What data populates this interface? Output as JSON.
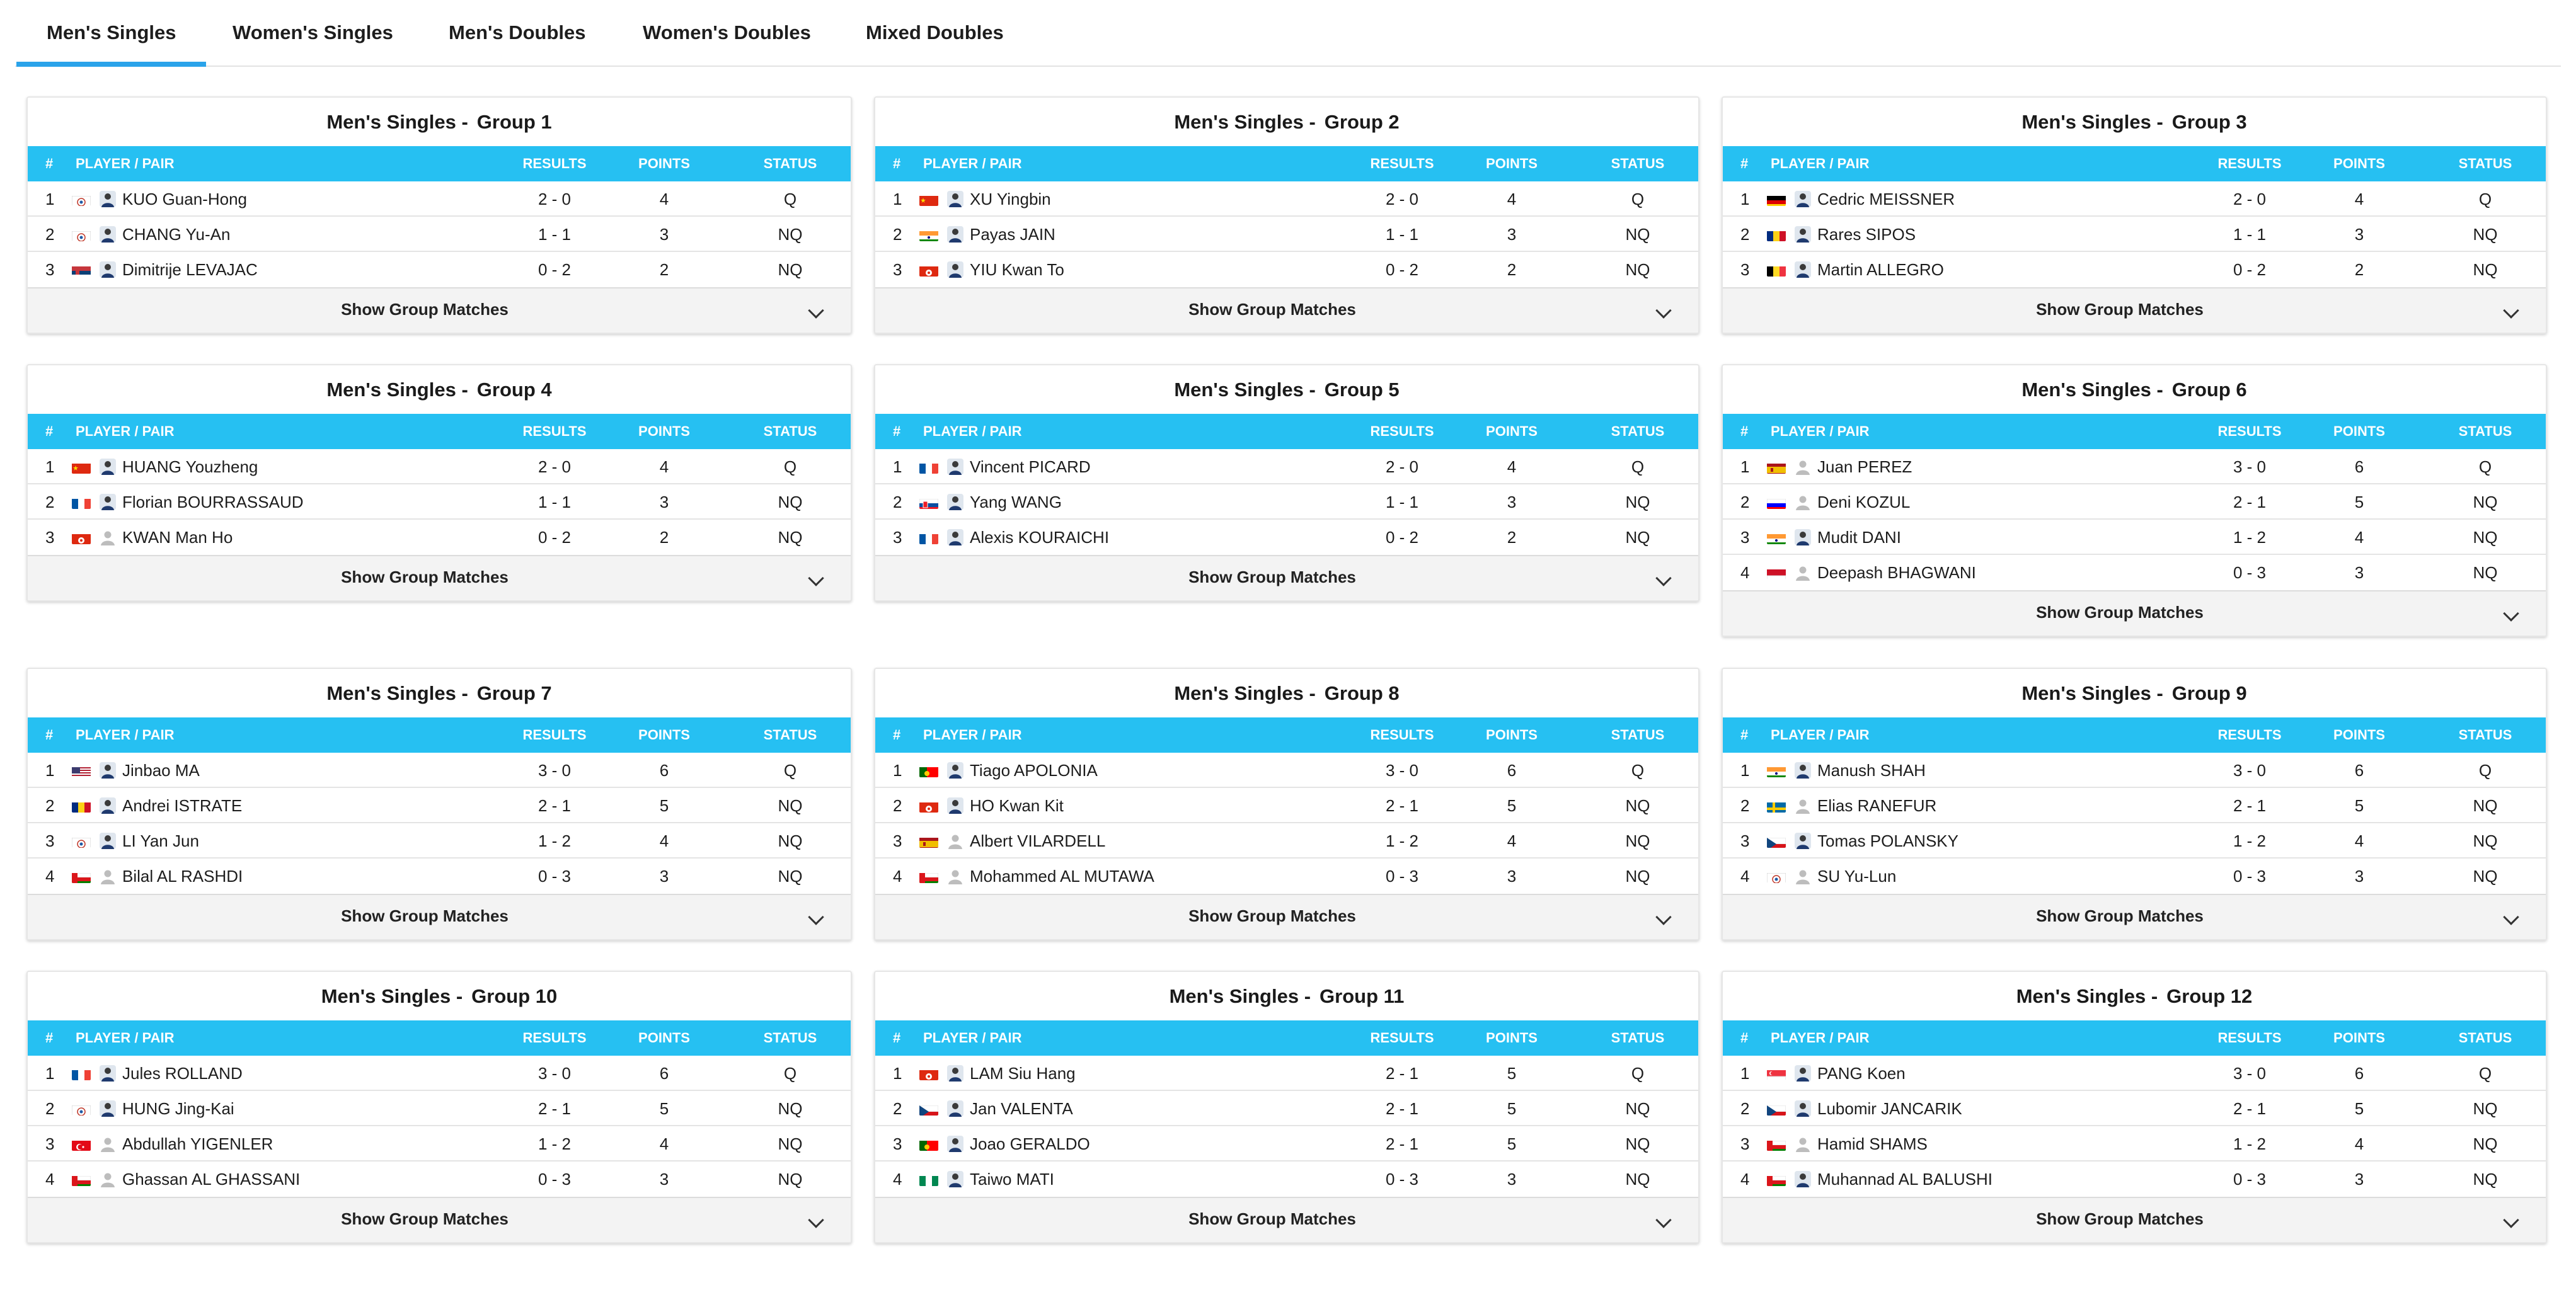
{
  "tabs": [
    {
      "label": "Men's Singles",
      "active": true
    },
    {
      "label": "Women's Singles"
    },
    {
      "label": "Men's Doubles"
    },
    {
      "label": "Women's Doubles"
    },
    {
      "label": "Mixed Doubles"
    }
  ],
  "table_headers": {
    "rank": "#",
    "player": "PLAYER / PAIR",
    "results": "RESULTS",
    "points": "POINTS",
    "status": "STATUS"
  },
  "show_matches_label": "Show Group Matches",
  "groups": [
    {
      "prefix": "Men's Singles -",
      "group": "Group 1",
      "rows": [
        {
          "rank": "1",
          "flag": "TPE",
          "photo": true,
          "name": "KUO Guan-Hong",
          "results": "2 - 0",
          "points": "4",
          "status": "Q"
        },
        {
          "rank": "2",
          "flag": "TPE",
          "photo": true,
          "name": "CHANG Yu-An",
          "results": "1 - 1",
          "points": "3",
          "status": "NQ"
        },
        {
          "rank": "3",
          "flag": "SRB",
          "photo": true,
          "name": "Dimitrije LEVAJAC",
          "results": "0 - 2",
          "points": "2",
          "status": "NQ"
        }
      ]
    },
    {
      "prefix": "Men's Singles -",
      "group": "Group 2",
      "rows": [
        {
          "rank": "1",
          "flag": "CHN",
          "photo": true,
          "name": "XU Yingbin",
          "results": "2 - 0",
          "points": "4",
          "status": "Q"
        },
        {
          "rank": "2",
          "flag": "IND",
          "photo": true,
          "name": "Payas JAIN",
          "results": "1 - 1",
          "points": "3",
          "status": "NQ"
        },
        {
          "rank": "3",
          "flag": "HKG",
          "photo": true,
          "name": "YIU Kwan To",
          "results": "0 - 2",
          "points": "2",
          "status": "NQ"
        }
      ]
    },
    {
      "prefix": "Men's Singles -",
      "group": "Group 3",
      "rows": [
        {
          "rank": "1",
          "flag": "GER",
          "photo": true,
          "name": "Cedric MEISSNER",
          "results": "2 - 0",
          "points": "4",
          "status": "Q"
        },
        {
          "rank": "2",
          "flag": "ROU",
          "photo": true,
          "name": "Rares SIPOS",
          "results": "1 - 1",
          "points": "3",
          "status": "NQ"
        },
        {
          "rank": "3",
          "flag": "BEL",
          "photo": true,
          "name": "Martin ALLEGRO",
          "results": "0 - 2",
          "points": "2",
          "status": "NQ"
        }
      ]
    },
    {
      "prefix": "Men's Singles -",
      "group": "Group 4",
      "rows": [
        {
          "rank": "1",
          "flag": "CHN",
          "photo": true,
          "name": "HUANG Youzheng",
          "results": "2 - 0",
          "points": "4",
          "status": "Q"
        },
        {
          "rank": "2",
          "flag": "FRA",
          "photo": true,
          "name": "Florian BOURRASSAUD",
          "results": "1 - 1",
          "points": "3",
          "status": "NQ"
        },
        {
          "rank": "3",
          "flag": "HKG",
          "photo": false,
          "name": "KWAN Man Ho",
          "results": "0 - 2",
          "points": "2",
          "status": "NQ"
        }
      ]
    },
    {
      "prefix": "Men's Singles -",
      "group": "Group 5",
      "rows": [
        {
          "rank": "1",
          "flag": "FRA",
          "photo": true,
          "name": "Vincent PICARD",
          "results": "2 - 0",
          "points": "4",
          "status": "Q"
        },
        {
          "rank": "2",
          "flag": "SVK",
          "photo": true,
          "name": "Yang WANG",
          "results": "1 - 1",
          "points": "3",
          "status": "NQ"
        },
        {
          "rank": "3",
          "flag": "FRA",
          "photo": true,
          "name": "Alexis KOURAICHI",
          "results": "0 - 2",
          "points": "2",
          "status": "NQ"
        }
      ]
    },
    {
      "prefix": "Men's Singles -",
      "group": "Group 6",
      "rows": [
        {
          "rank": "1",
          "flag": "ESP",
          "photo": false,
          "name": "Juan PEREZ",
          "results": "3 - 0",
          "points": "6",
          "status": "Q"
        },
        {
          "rank": "2",
          "flag": "SLO",
          "photo": false,
          "name": "Deni KOZUL",
          "results": "2 - 1",
          "points": "5",
          "status": "NQ"
        },
        {
          "rank": "3",
          "flag": "IND",
          "photo": true,
          "name": "Mudit DANI",
          "results": "1 - 2",
          "points": "4",
          "status": "NQ"
        },
        {
          "rank": "4",
          "flag": "INA",
          "photo": false,
          "name": "Deepash BHAGWANI",
          "results": "0 - 3",
          "points": "3",
          "status": "NQ"
        }
      ]
    },
    {
      "prefix": "Men's Singles -",
      "group": "Group 7",
      "rows": [
        {
          "rank": "1",
          "flag": "USA",
          "photo": true,
          "name": "Jinbao MA",
          "results": "3 - 0",
          "points": "6",
          "status": "Q"
        },
        {
          "rank": "2",
          "flag": "ROU",
          "photo": true,
          "name": "Andrei ISTRATE",
          "results": "2 - 1",
          "points": "5",
          "status": "NQ"
        },
        {
          "rank": "3",
          "flag": "TPE",
          "photo": true,
          "name": "LI Yan Jun",
          "results": "1 - 2",
          "points": "4",
          "status": "NQ"
        },
        {
          "rank": "4",
          "flag": "OMA",
          "photo": false,
          "name": "Bilal AL RASHDI",
          "results": "0 - 3",
          "points": "3",
          "status": "NQ"
        }
      ]
    },
    {
      "prefix": "Men's Singles -",
      "group": "Group 8",
      "rows": [
        {
          "rank": "1",
          "flag": "POR",
          "photo": true,
          "name": "Tiago APOLONIA",
          "results": "3 - 0",
          "points": "6",
          "status": "Q"
        },
        {
          "rank": "2",
          "flag": "HKG",
          "photo": true,
          "name": "HO Kwan Kit",
          "results": "2 - 1",
          "points": "5",
          "status": "NQ"
        },
        {
          "rank": "3",
          "flag": "ESP",
          "photo": false,
          "name": "Albert VILARDELL",
          "results": "1 - 2",
          "points": "4",
          "status": "NQ"
        },
        {
          "rank": "4",
          "flag": "OMA",
          "photo": false,
          "name": "Mohammed AL MUTAWA",
          "results": "0 - 3",
          "points": "3",
          "status": "NQ"
        }
      ]
    },
    {
      "prefix": "Men's Singles -",
      "group": "Group 9",
      "rows": [
        {
          "rank": "1",
          "flag": "IND",
          "photo": true,
          "name": "Manush SHAH",
          "results": "3 - 0",
          "points": "6",
          "status": "Q"
        },
        {
          "rank": "2",
          "flag": "SWE",
          "photo": false,
          "name": "Elias RANEFUR",
          "results": "2 - 1",
          "points": "5",
          "status": "NQ"
        },
        {
          "rank": "3",
          "flag": "CZE",
          "photo": true,
          "name": "Tomas POLANSKY",
          "results": "1 - 2",
          "points": "4",
          "status": "NQ"
        },
        {
          "rank": "4",
          "flag": "TPE",
          "photo": false,
          "name": "SU Yu-Lun",
          "results": "0 - 3",
          "points": "3",
          "status": "NQ"
        }
      ]
    },
    {
      "prefix": "Men's Singles -",
      "group": "Group 10",
      "rows": [
        {
          "rank": "1",
          "flag": "FRA",
          "photo": true,
          "name": "Jules ROLLAND",
          "results": "3 - 0",
          "points": "6",
          "status": "Q"
        },
        {
          "rank": "2",
          "flag": "TPE",
          "photo": true,
          "name": "HUNG Jing-Kai",
          "results": "2 - 1",
          "points": "5",
          "status": "NQ"
        },
        {
          "rank": "3",
          "flag": "TUR",
          "photo": false,
          "name": "Abdullah YIGENLER",
          "results": "1 - 2",
          "points": "4",
          "status": "NQ"
        },
        {
          "rank": "4",
          "flag": "OMA",
          "photo": false,
          "name": "Ghassan AL GHASSANI",
          "results": "0 - 3",
          "points": "3",
          "status": "NQ"
        }
      ]
    },
    {
      "prefix": "Men's Singles -",
      "group": "Group 11",
      "rows": [
        {
          "rank": "1",
          "flag": "HKG",
          "photo": true,
          "name": "LAM Siu Hang",
          "results": "2 - 1",
          "points": "5",
          "status": "Q"
        },
        {
          "rank": "2",
          "flag": "CZE",
          "photo": true,
          "name": "Jan VALENTA",
          "results": "2 - 1",
          "points": "5",
          "status": "NQ"
        },
        {
          "rank": "3",
          "flag": "POR",
          "photo": true,
          "name": "Joao GERALDO",
          "results": "2 - 1",
          "points": "5",
          "status": "NQ"
        },
        {
          "rank": "4",
          "flag": "NGR",
          "photo": true,
          "name": "Taiwo MATI",
          "results": "0 - 3",
          "points": "3",
          "status": "NQ"
        }
      ]
    },
    {
      "prefix": "Men's Singles -",
      "group": "Group 12",
      "rows": [
        {
          "rank": "1",
          "flag": "SGP",
          "photo": true,
          "name": "PANG Koen",
          "results": "3 - 0",
          "points": "6",
          "status": "Q"
        },
        {
          "rank": "2",
          "flag": "CZE",
          "photo": true,
          "name": "Lubomir JANCARIK",
          "results": "2 - 1",
          "points": "5",
          "status": "NQ"
        },
        {
          "rank": "3",
          "flag": "OMA",
          "photo": false,
          "name": "Hamid SHAMS",
          "results": "1 - 2",
          "points": "4",
          "status": "NQ"
        },
        {
          "rank": "4",
          "flag": "OMA",
          "photo": true,
          "name": "Muhannad AL BALUSHI",
          "results": "0 - 3",
          "points": "3",
          "status": "NQ"
        }
      ]
    }
  ]
}
